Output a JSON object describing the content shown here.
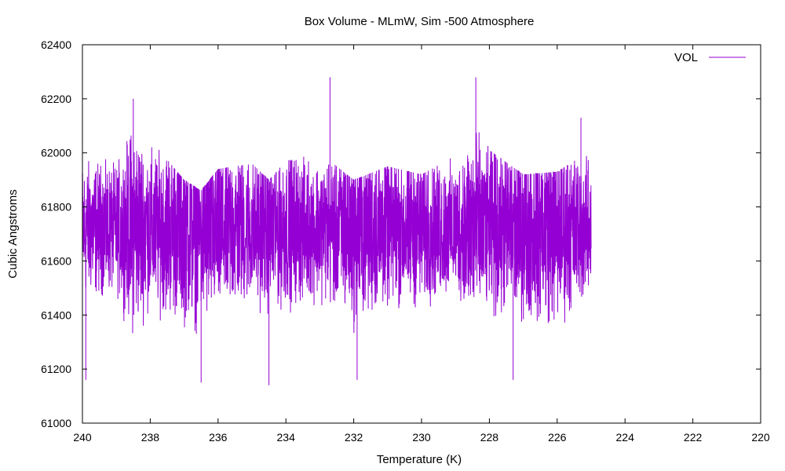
{
  "chart_data": {
    "type": "line",
    "title": "Box Volume - MLmW, Sim -500 Atmosphere",
    "xlabel": "Temperature (K)",
    "ylabel": "Cubic Angstroms",
    "xlim": [
      240,
      220
    ],
    "ylim": [
      61000,
      62400
    ],
    "x_reversed": true,
    "xticks": [
      "240",
      "238",
      "236",
      "234",
      "232",
      "230",
      "228",
      "226",
      "224",
      "222",
      "220"
    ],
    "yticks": [
      "61000",
      "61200",
      "61400",
      "61600",
      "61800",
      "62000",
      "62200",
      "62400"
    ],
    "legend_position": "top-right",
    "grid": false,
    "series": [
      {
        "name": "VOL",
        "color": "#9400d3",
        "x_range": [
          240,
          225
        ],
        "mean": 61720,
        "envelope": {
          "x": [
            240,
            239,
            238.5,
            238,
            237,
            236.5,
            236,
            235,
            234.5,
            234,
            233,
            232,
            231,
            230,
            229,
            228.5,
            228,
            227,
            226,
            225
          ],
          "upper": [
            62010,
            61960,
            62180,
            62050,
            61900,
            61860,
            61940,
            61960,
            61900,
            61970,
            62000,
            61900,
            61950,
            61920,
            61990,
            62190,
            62010,
            61920,
            61930,
            62010
          ],
          "lower": [
            61420,
            61440,
            61300,
            61380,
            61310,
            61290,
            61330,
            61400,
            61360,
            61380,
            61420,
            61300,
            61380,
            61380,
            61440,
            61480,
            61330,
            61330,
            61300,
            61440
          ]
        },
        "extremes": [
          {
            "x": 239.9,
            "y": 61160
          },
          {
            "x": 238.5,
            "y": 62200
          },
          {
            "x": 236.5,
            "y": 61150
          },
          {
            "x": 234.5,
            "y": 61140
          },
          {
            "x": 232.7,
            "y": 62280
          },
          {
            "x": 231.9,
            "y": 61160
          },
          {
            "x": 228.4,
            "y": 62280
          },
          {
            "x": 227.3,
            "y": 61160
          },
          {
            "x": 225.3,
            "y": 62130
          }
        ]
      }
    ]
  }
}
